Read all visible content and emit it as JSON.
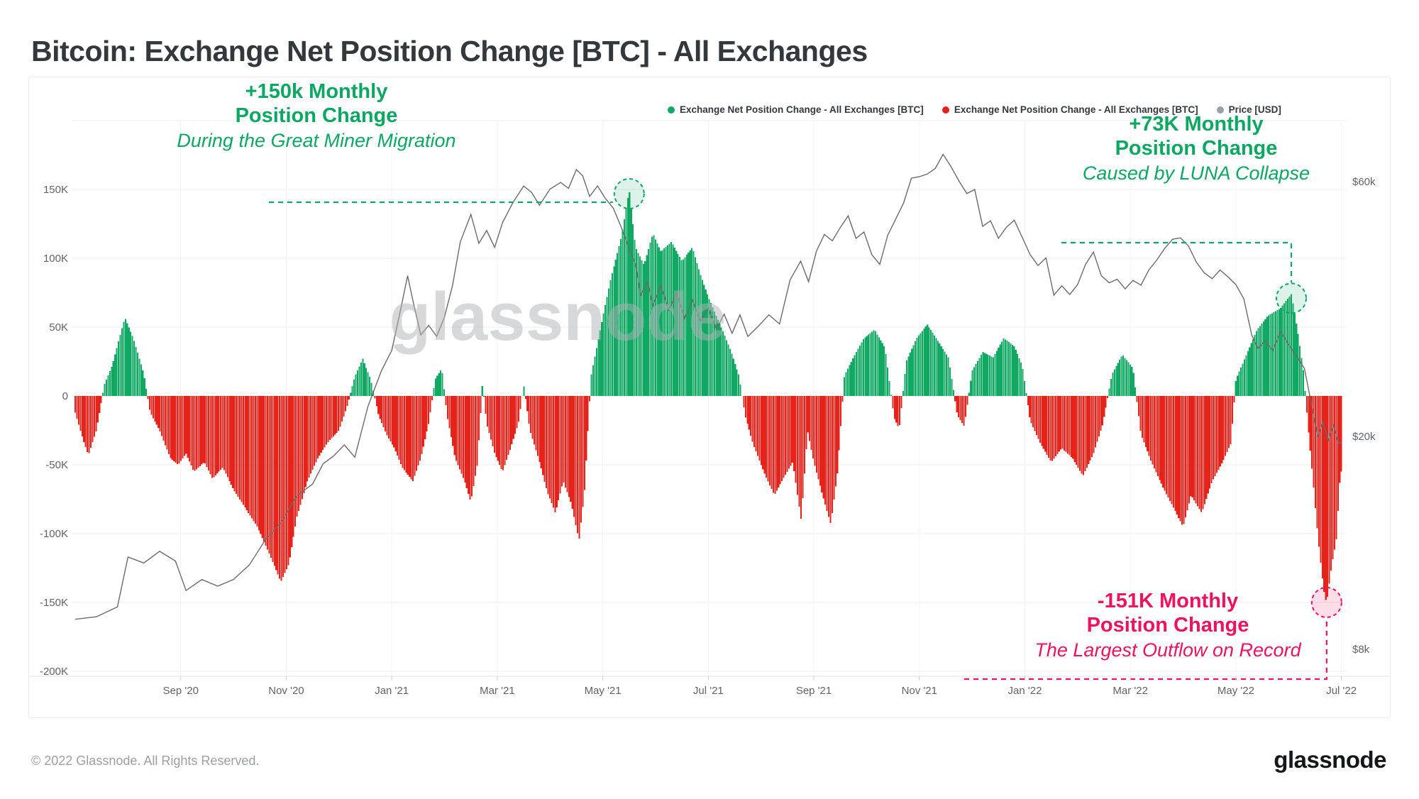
{
  "title": "Bitcoin: Exchange Net Position Change [BTC] - All Exchanges",
  "legend": {
    "items": [
      {
        "label": "Exchange Net Position Change - All Exchanges [BTC]",
        "color": "#10a862"
      },
      {
        "label": "Exchange Net Position Change - All Exchanges [BTC]",
        "color": "#e5231b"
      },
      {
        "label": "Price [USD]",
        "color": "#9aa0a6"
      }
    ]
  },
  "watermark": "glassnode",
  "annotations": {
    "miner": {
      "line1": "+150k Monthly",
      "line2": "Position Change",
      "line3": "During the Great Miner Migration",
      "color": "#0ca762"
    },
    "luna": {
      "line1": "+73K Monthly",
      "line2": "Position Change",
      "line3": "Caused by LUNA Collapse",
      "color": "#0ca762"
    },
    "outflow": {
      "line1": "-151K Monthly",
      "line2": "Position Change",
      "line3": "The Largest Outflow on Record",
      "color": "#ef135d"
    }
  },
  "footer": {
    "copyright": "© 2022 Glassnode. All Rights Reserved.",
    "brand": "glassnode"
  },
  "chart_data": {
    "type": "bar+line",
    "title": "Bitcoin: Exchange Net Position Change [BTC] - All Exchanges",
    "x_unit": "months since 2020-07-01",
    "x_range": [
      0,
      24
    ],
    "x_ticks": {
      "positions": [
        2,
        4,
        6,
        8,
        10,
        12,
        14,
        16,
        18,
        20,
        22,
        24
      ],
      "labels": [
        "Sep '20",
        "Nov '20",
        "Jan '21",
        "Mar '21",
        "May '21",
        "Jul '21",
        "Sep '21",
        "Nov '21",
        "Jan '22",
        "Mar '22",
        "May '22",
        "Jul '22"
      ]
    },
    "y_left": {
      "name": "Exchange Net Position Change [BTC]",
      "unit": "K BTC",
      "tick_values": [
        150,
        100,
        50,
        0,
        -50,
        -100,
        -150,
        -200
      ],
      "tick_labels": [
        "150K",
        "100K",
        "50K",
        "0",
        "-50K",
        "-100K",
        "-150K",
        "-200K"
      ],
      "extra_gridline_value": 200,
      "range": [
        -200,
        200
      ],
      "grid": true
    },
    "y_right": {
      "name": "Price [USD]",
      "scale": "log",
      "tick_values_usd_k": [
        60,
        20,
        8
      ],
      "tick_labels": [
        "$60k",
        "$20k",
        "$8k"
      ]
    },
    "bar_series": {
      "name": "Exchange Net Position Change - All Exchanges [BTC]",
      "positive_color": "#10a862",
      "negative_color": "#e5231b",
      "unit": "K BTC",
      "anchors_t_value": [
        [
          0.0,
          -12
        ],
        [
          0.15,
          -32
        ],
        [
          0.25,
          -43
        ],
        [
          0.4,
          -25
        ],
        [
          0.48,
          -8
        ],
        [
          0.55,
          8
        ],
        [
          0.7,
          22
        ],
        [
          0.94,
          57
        ],
        [
          1.1,
          42
        ],
        [
          1.3,
          16
        ],
        [
          1.42,
          -12
        ],
        [
          1.6,
          -25
        ],
        [
          1.8,
          -45
        ],
        [
          1.95,
          -50
        ],
        [
          2.1,
          -42
        ],
        [
          2.25,
          -55
        ],
        [
          2.45,
          -48
        ],
        [
          2.6,
          -60
        ],
        [
          2.8,
          -52
        ],
        [
          3.0,
          -68
        ],
        [
          3.2,
          -80
        ],
        [
          3.45,
          -95
        ],
        [
          3.65,
          -112
        ],
        [
          3.9,
          -135
        ],
        [
          4.05,
          -122
        ],
        [
          4.2,
          -88
        ],
        [
          4.4,
          -62
        ],
        [
          4.6,
          -45
        ],
        [
          4.8,
          -33
        ],
        [
          5.0,
          -25
        ],
        [
          5.15,
          -8
        ],
        [
          5.3,
          14
        ],
        [
          5.45,
          27
        ],
        [
          5.6,
          12
        ],
        [
          5.75,
          -14
        ],
        [
          5.9,
          -28
        ],
        [
          6.05,
          -38
        ],
        [
          6.2,
          -52
        ],
        [
          6.4,
          -62
        ],
        [
          6.55,
          -45
        ],
        [
          6.7,
          -20
        ],
        [
          6.82,
          12
        ],
        [
          6.95,
          20
        ],
        [
          7.05,
          -15
        ],
        [
          7.2,
          -45
        ],
        [
          7.38,
          -62
        ],
        [
          7.5,
          -77
        ],
        [
          7.62,
          -50
        ],
        [
          7.72,
          10
        ],
        [
          7.8,
          -20
        ],
        [
          7.95,
          -42
        ],
        [
          8.1,
          -55
        ],
        [
          8.25,
          -38
        ],
        [
          8.4,
          -20
        ],
        [
          8.5,
          8
        ],
        [
          8.62,
          -25
        ],
        [
          8.8,
          -48
        ],
        [
          8.95,
          -70
        ],
        [
          9.1,
          -85
        ],
        [
          9.25,
          -62
        ],
        [
          9.4,
          -78
        ],
        [
          9.55,
          -105
        ],
        [
          9.65,
          -70
        ],
        [
          9.78,
          15
        ],
        [
          9.95,
          48
        ],
        [
          10.15,
          85
        ],
        [
          10.35,
          115
        ],
        [
          10.5,
          150
        ],
        [
          10.62,
          108
        ],
        [
          10.78,
          95
        ],
        [
          10.95,
          118
        ],
        [
          11.1,
          105
        ],
        [
          11.3,
          112
        ],
        [
          11.5,
          98
        ],
        [
          11.7,
          108
        ],
        [
          11.85,
          88
        ],
        [
          12.0,
          72
        ],
        [
          12.15,
          58
        ],
        [
          12.3,
          45
        ],
        [
          12.45,
          30
        ],
        [
          12.58,
          15
        ],
        [
          12.7,
          -15
        ],
        [
          12.85,
          -35
        ],
        [
          13.05,
          -55
        ],
        [
          13.25,
          -72
        ],
        [
          13.45,
          -58
        ],
        [
          13.6,
          -48
        ],
        [
          13.76,
          -90
        ],
        [
          13.88,
          -25
        ],
        [
          14.0,
          -48
        ],
        [
          14.15,
          -70
        ],
        [
          14.32,
          -93
        ],
        [
          14.45,
          -55
        ],
        [
          14.58,
          15
        ],
        [
          14.75,
          28
        ],
        [
          14.95,
          42
        ],
        [
          15.15,
          48
        ],
        [
          15.35,
          35
        ],
        [
          15.52,
          -16
        ],
        [
          15.62,
          -24
        ],
        [
          15.75,
          25
        ],
        [
          15.95,
          42
        ],
        [
          16.15,
          52
        ],
        [
          16.35,
          40
        ],
        [
          16.55,
          28
        ],
        [
          16.72,
          -14
        ],
        [
          16.85,
          -22
        ],
        [
          17.0,
          18
        ],
        [
          17.2,
          32
        ],
        [
          17.4,
          28
        ],
        [
          17.6,
          42
        ],
        [
          17.8,
          36
        ],
        [
          17.95,
          22
        ],
        [
          18.1,
          -18
        ],
        [
          18.3,
          -35
        ],
        [
          18.5,
          -48
        ],
        [
          18.7,
          -38
        ],
        [
          18.9,
          -45
        ],
        [
          19.1,
          -58
        ],
        [
          19.3,
          -42
        ],
        [
          19.48,
          -20
        ],
        [
          19.65,
          16
        ],
        [
          19.85,
          30
        ],
        [
          20.05,
          20
        ],
        [
          20.2,
          -28
        ],
        [
          20.4,
          -48
        ],
        [
          20.6,
          -65
        ],
        [
          20.8,
          -80
        ],
        [
          21.0,
          -95
        ],
        [
          21.15,
          -72
        ],
        [
          21.35,
          -85
        ],
        [
          21.55,
          -62
        ],
        [
          21.75,
          -48
        ],
        [
          21.9,
          -35
        ],
        [
          22.0,
          12
        ],
        [
          22.2,
          30
        ],
        [
          22.4,
          48
        ],
        [
          22.6,
          58
        ],
        [
          22.85,
          64
        ],
        [
          23.05,
          74
        ],
        [
          23.18,
          45
        ],
        [
          23.28,
          18
        ],
        [
          23.36,
          -20
        ],
        [
          23.46,
          -60
        ],
        [
          23.56,
          -105
        ],
        [
          23.66,
          -140
        ],
        [
          23.72,
          -151
        ],
        [
          23.82,
          -122
        ],
        [
          23.9,
          -105
        ],
        [
          23.98,
          -55
        ]
      ]
    },
    "price_series": {
      "name": "Price [USD]",
      "color": "#6b6b6b",
      "unit": "USD thousands",
      "anchors_t_value": [
        [
          0,
          9.1
        ],
        [
          0.4,
          9.2
        ],
        [
          0.8,
          9.6
        ],
        [
          1.0,
          11.9
        ],
        [
          1.3,
          11.6
        ],
        [
          1.6,
          12.2
        ],
        [
          1.9,
          11.7
        ],
        [
          2.1,
          10.3
        ],
        [
          2.4,
          10.8
        ],
        [
          2.7,
          10.5
        ],
        [
          3.0,
          10.8
        ],
        [
          3.3,
          11.5
        ],
        [
          3.6,
          12.8
        ],
        [
          3.9,
          13.8
        ],
        [
          4.2,
          15.5
        ],
        [
          4.5,
          16.3
        ],
        [
          4.7,
          17.8
        ],
        [
          4.9,
          18.4
        ],
        [
          5.1,
          19.3
        ],
        [
          5.3,
          18.3
        ],
        [
          5.55,
          22.8
        ],
        [
          5.8,
          26.5
        ],
        [
          6.0,
          29.0
        ],
        [
          6.15,
          33.9
        ],
        [
          6.3,
          40.0
        ],
        [
          6.42,
          35.2
        ],
        [
          6.55,
          31.0
        ],
        [
          6.7,
          32.3
        ],
        [
          6.85,
          30.8
        ],
        [
          7.0,
          33.5
        ],
        [
          7.15,
          38.3
        ],
        [
          7.3,
          46.3
        ],
        [
          7.5,
          52.1
        ],
        [
          7.65,
          46.0
        ],
        [
          7.8,
          48.6
        ],
        [
          7.95,
          45.2
        ],
        [
          8.1,
          50.3
        ],
        [
          8.3,
          54.9
        ],
        [
          8.5,
          58.9
        ],
        [
          8.65,
          57.3
        ],
        [
          8.8,
          54.2
        ],
        [
          9.0,
          58.1
        ],
        [
          9.2,
          59.8
        ],
        [
          9.35,
          58.3
        ],
        [
          9.5,
          63.2
        ],
        [
          9.62,
          61.5
        ],
        [
          9.75,
          56.3
        ],
        [
          9.9,
          58.9
        ],
        [
          10.05,
          55.8
        ],
        [
          10.2,
          53.5
        ],
        [
          10.35,
          49.3
        ],
        [
          10.5,
          45.0
        ],
        [
          10.62,
          42.0
        ],
        [
          10.72,
          36.8
        ],
        [
          10.85,
          38.9
        ],
        [
          10.95,
          35.2
        ],
        [
          11.1,
          38.4
        ],
        [
          11.25,
          34.5
        ],
        [
          11.4,
          37.2
        ],
        [
          11.55,
          33.2
        ],
        [
          11.7,
          36.0
        ],
        [
          11.85,
          32.8
        ],
        [
          12.0,
          34.8
        ],
        [
          12.15,
          31.8
        ],
        [
          12.3,
          33.9
        ],
        [
          12.45,
          31.2
        ],
        [
          12.6,
          33.8
        ],
        [
          12.75,
          30.8
        ],
        [
          12.95,
          32.2
        ],
        [
          13.15,
          33.8
        ],
        [
          13.35,
          32.5
        ],
        [
          13.55,
          39.3
        ],
        [
          13.75,
          42.6
        ],
        [
          13.9,
          39.0
        ],
        [
          14.05,
          44.5
        ],
        [
          14.2,
          47.8
        ],
        [
          14.35,
          46.5
        ],
        [
          14.5,
          49.2
        ],
        [
          14.65,
          51.8
        ],
        [
          14.8,
          47.0
        ],
        [
          14.95,
          48.3
        ],
        [
          15.1,
          43.8
        ],
        [
          15.25,
          42.0
        ],
        [
          15.4,
          47.6
        ],
        [
          15.55,
          51.0
        ],
        [
          15.7,
          54.7
        ],
        [
          15.85,
          60.9
        ],
        [
          16.0,
          61.3
        ],
        [
          16.15,
          62.0
        ],
        [
          16.3,
          63.5
        ],
        [
          16.45,
          67.5
        ],
        [
          16.6,
          64.0
        ],
        [
          16.75,
          60.2
        ],
        [
          16.9,
          57.0
        ],
        [
          17.05,
          58.0
        ],
        [
          17.2,
          49.5
        ],
        [
          17.35,
          50.7
        ],
        [
          17.5,
          47.0
        ],
        [
          17.65,
          49.3
        ],
        [
          17.8,
          50.8
        ],
        [
          17.95,
          47.2
        ],
        [
          18.1,
          43.8
        ],
        [
          18.25,
          41.8
        ],
        [
          18.4,
          43.2
        ],
        [
          18.55,
          36.8
        ],
        [
          18.7,
          38.3
        ],
        [
          18.85,
          36.9
        ],
        [
          19.0,
          38.5
        ],
        [
          19.15,
          42.0
        ],
        [
          19.3,
          44.3
        ],
        [
          19.45,
          40.0
        ],
        [
          19.6,
          38.8
        ],
        [
          19.75,
          39.4
        ],
        [
          19.9,
          37.8
        ],
        [
          20.05,
          39.2
        ],
        [
          20.2,
          38.4
        ],
        [
          20.35,
          41.0
        ],
        [
          20.5,
          42.8
        ],
        [
          20.65,
          45.0
        ],
        [
          20.8,
          46.8
        ],
        [
          20.95,
          47.1
        ],
        [
          21.1,
          45.5
        ],
        [
          21.25,
          42.4
        ],
        [
          21.4,
          40.5
        ],
        [
          21.55,
          39.5
        ],
        [
          21.7,
          41.0
        ],
        [
          21.85,
          39.8
        ],
        [
          22.0,
          38.5
        ],
        [
          22.15,
          36.2
        ],
        [
          22.3,
          31.0
        ],
        [
          22.42,
          29.2
        ],
        [
          22.55,
          30.2
        ],
        [
          22.7,
          29.0
        ],
        [
          22.85,
          31.5
        ],
        [
          23.0,
          29.7
        ],
        [
          23.15,
          28.3
        ],
        [
          23.3,
          26.8
        ],
        [
          23.45,
          22.5
        ],
        [
          23.55,
          20.0
        ],
        [
          23.65,
          21.3
        ],
        [
          23.75,
          19.7
        ],
        [
          23.85,
          21.0
        ],
        [
          23.95,
          19.4
        ],
        [
          24.0,
          19.5
        ]
      ]
    },
    "highlights": [
      {
        "id": "miner",
        "t": 10.5,
        "value_k": 150,
        "color": "#0ca762",
        "leader": "horizontal-from-left"
      },
      {
        "id": "luna",
        "t": 23.05,
        "value_k": 73,
        "color": "#0ca762",
        "leader": "horizontal-then-down"
      },
      {
        "id": "outflow",
        "t": 23.72,
        "value_k": -151,
        "color": "#ef135d",
        "leader": "horizontal-then-up"
      }
    ],
    "legend_position": "top-right",
    "grid": "horizontal-strong, vertical-faint"
  }
}
